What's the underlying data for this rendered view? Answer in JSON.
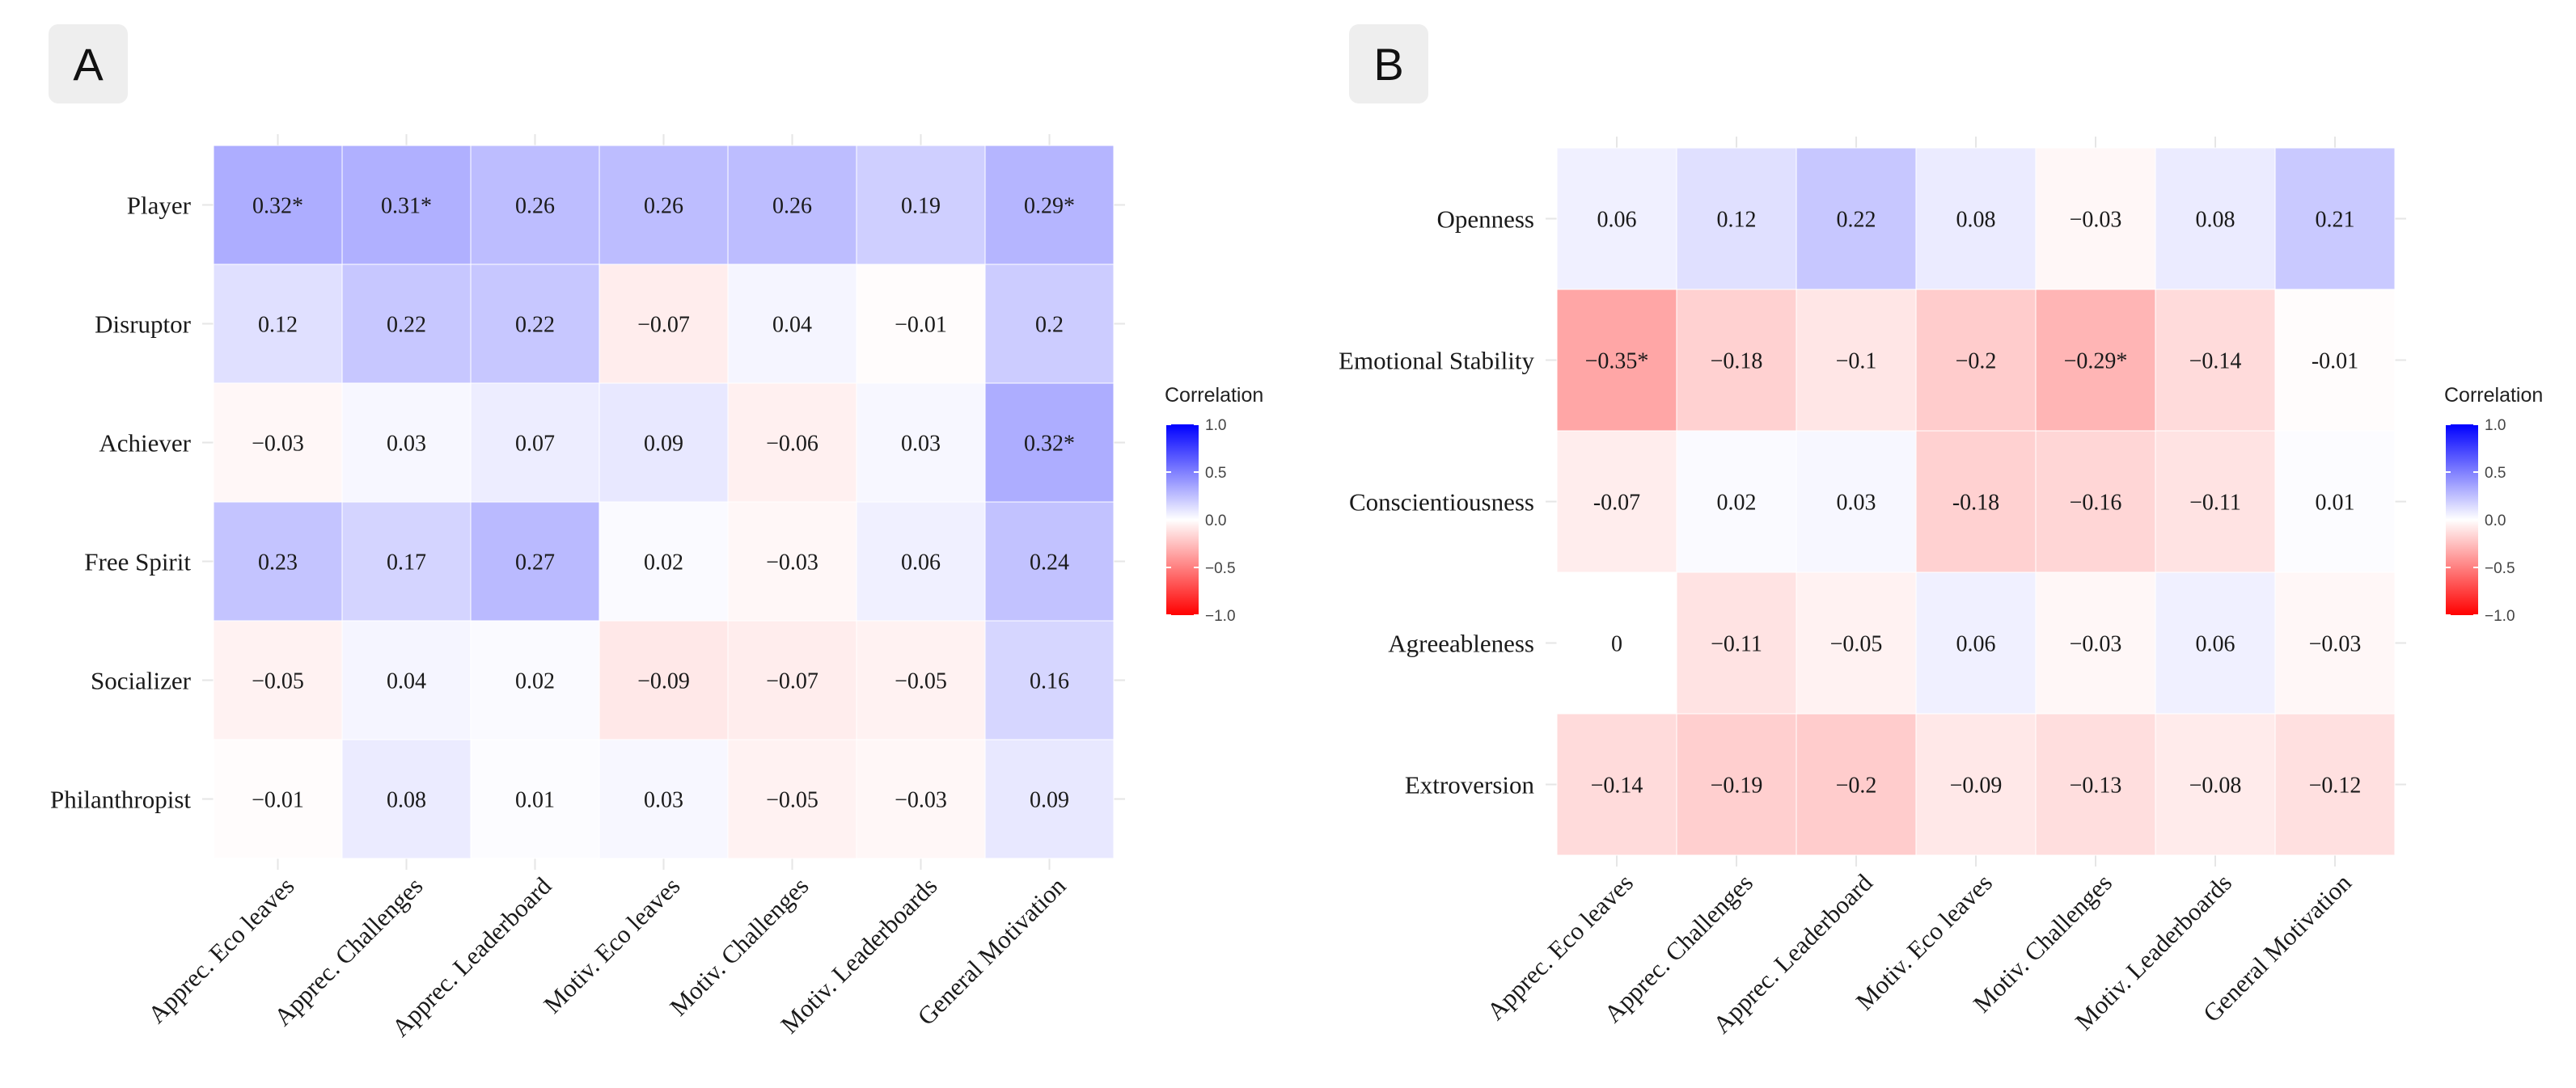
{
  "chart_data": [
    {
      "type": "heatmap",
      "panel": "A",
      "title": "",
      "xlabel": "",
      "ylabel": "",
      "rows": [
        "Player",
        "Disruptor",
        "Achiever",
        "Free Spirit",
        "Socializer",
        "Philanthropist"
      ],
      "columns": [
        "Apprec. Eco leaves",
        "Apprec. Challenges",
        "Apprec. Leaderboard",
        "Motiv. Eco leaves",
        "Motiv. Challenges",
        "Motiv. Leaderboards",
        "General Motivation"
      ],
      "values": [
        [
          0.32,
          0.31,
          0.26,
          0.26,
          0.26,
          0.19,
          0.29
        ],
        [
          0.12,
          0.22,
          0.22,
          -0.07,
          0.04,
          -0.01,
          0.2
        ],
        [
          -0.03,
          0.03,
          0.07,
          0.09,
          -0.06,
          0.03,
          0.32
        ],
        [
          0.23,
          0.17,
          0.27,
          0.02,
          -0.03,
          0.06,
          0.24
        ],
        [
          -0.05,
          0.04,
          0.02,
          -0.09,
          -0.07,
          -0.05,
          0.16
        ],
        [
          -0.01,
          0.08,
          0.01,
          0.03,
          -0.05,
          -0.03,
          0.09
        ]
      ],
      "labels": [
        [
          "0.32*",
          "0.31*",
          "0.26",
          "0.26",
          "0.26",
          "0.19",
          "0.29*"
        ],
        [
          "0.12",
          "0.22",
          "0.22",
          "−0.07",
          "0.04",
          "−0.01",
          "0.2"
        ],
        [
          "−0.03",
          "0.03",
          "0.07",
          "0.09",
          "−0.06",
          "0.03",
          "0.32*"
        ],
        [
          "0.23",
          "0.17",
          "0.27",
          "0.02",
          "−0.03",
          "0.06",
          "0.24"
        ],
        [
          "−0.05",
          "0.04",
          "0.02",
          "−0.09",
          "−0.07",
          "−0.05",
          "0.16"
        ],
        [
          "−0.01",
          "0.08",
          "0.01",
          "0.03",
          "−0.05",
          "−0.03",
          "0.09"
        ]
      ],
      "colorbar": {
        "title": "Correlation",
        "range": [
          -1,
          1
        ],
        "ticks": [
          1,
          0.5,
          0,
          -0.5,
          -1
        ],
        "tick_labels": [
          "1.0",
          "0.5",
          "0.0",
          "−0.5",
          "−1.0"
        ],
        "low_color": "#ff0000",
        "mid_color": "#ffffff",
        "high_color": "#0000ff"
      },
      "legend_position": "right"
    },
    {
      "type": "heatmap",
      "panel": "B",
      "title": "",
      "xlabel": "",
      "ylabel": "",
      "rows": [
        "Openness",
        "Emotional Stability",
        "Conscientiousness",
        "Agreeableness",
        "Extroversion"
      ],
      "columns": [
        "Apprec. Eco leaves",
        "Apprec. Challenges",
        "Apprec. Leaderboard",
        "Motiv. Eco leaves",
        "Motiv. Challenges",
        "Motiv. Leaderboards",
        "General Motivation"
      ],
      "values": [
        [
          0.06,
          0.12,
          0.22,
          0.08,
          -0.03,
          0.08,
          0.21
        ],
        [
          -0.35,
          -0.18,
          -0.1,
          -0.2,
          -0.29,
          -0.14,
          -0.01
        ],
        [
          -0.07,
          0.02,
          0.03,
          -0.18,
          -0.16,
          -0.11,
          0.01
        ],
        [
          0,
          -0.11,
          -0.05,
          0.06,
          -0.03,
          0.06,
          -0.03
        ],
        [
          -0.14,
          -0.19,
          -0.2,
          -0.09,
          -0.13,
          -0.08,
          -0.12
        ]
      ],
      "labels": [
        [
          "0.06",
          "0.12",
          "0.22",
          "0.08",
          "−0.03",
          "0.08",
          "0.21"
        ],
        [
          "−0.35*",
          "−0.18",
          "−0.1",
          "−0.2",
          "−0.29*",
          "−0.14",
          "-0.01"
        ],
        [
          "-0.07",
          "0.02",
          "0.03",
          "-0.18",
          "−0.16",
          "−0.11",
          "0.01"
        ],
        [
          "0",
          "−0.11",
          "−0.05",
          "0.06",
          "−0.03",
          "0.06",
          "−0.03"
        ],
        [
          "−0.14",
          "−0.19",
          "−0.2",
          "−0.09",
          "−0.13",
          "−0.08",
          "−0.12"
        ]
      ],
      "colorbar": {
        "title": "Correlation",
        "range": [
          -1,
          1
        ],
        "ticks": [
          1,
          0.5,
          0,
          -0.5,
          -1
        ],
        "tick_labels": [
          "1.0",
          "0.5",
          "0.0",
          "−0.5",
          "−1.0"
        ],
        "low_color": "#ff0000",
        "mid_color": "#ffffff",
        "high_color": "#0000ff"
      },
      "legend_position": "right"
    }
  ]
}
